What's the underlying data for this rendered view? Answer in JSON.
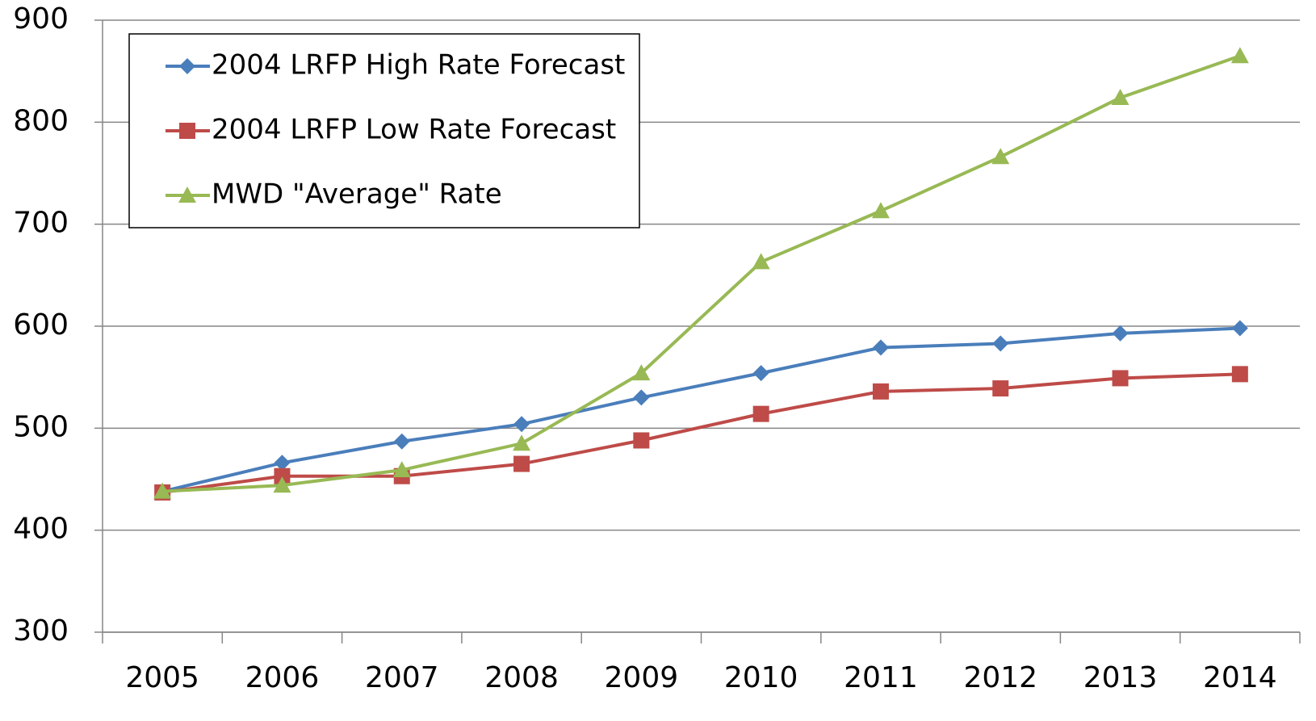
{
  "chart_data": {
    "type": "line",
    "categories": [
      "2005",
      "2006",
      "2007",
      "2008",
      "2009",
      "2010",
      "2011",
      "2012",
      "2013",
      "2014"
    ],
    "series": [
      {
        "name": "2004 LRFP High Rate Forecast",
        "color": "#4a7ebb",
        "marker": "diamond",
        "values": [
          438,
          466,
          487,
          504,
          530,
          554,
          579,
          583,
          593,
          598
        ]
      },
      {
        "name": "2004 LRFP Low Rate Forecast",
        "color": "#be4b48",
        "marker": "square",
        "values": [
          437,
          453,
          453,
          465,
          488,
          514,
          536,
          539,
          549,
          553
        ]
      },
      {
        "name": "MWD \"Average\" Rate",
        "color": "#98b954",
        "marker": "triangle",
        "values": [
          438,
          444,
          459,
          485,
          554,
          663,
          713,
          766,
          824,
          865
        ]
      }
    ],
    "ylim": [
      300,
      900
    ],
    "yticks": [
      300,
      400,
      500,
      600,
      700,
      800,
      900
    ],
    "grid": true,
    "legend": "upper left"
  }
}
